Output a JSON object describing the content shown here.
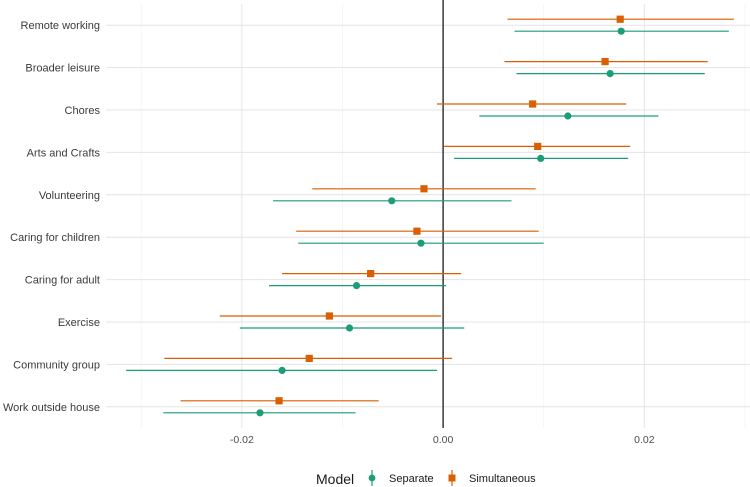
{
  "chart_data": {
    "type": "forest",
    "title": "",
    "xlabel": "",
    "ylabel": "",
    "xlim": [
      -0.0335,
      0.0305
    ],
    "x_ticks": [
      -0.02,
      0.0,
      0.02
    ],
    "x_tick_labels": [
      "-0.02",
      "0.00",
      "0.02"
    ],
    "reference_line": 0,
    "grid": true,
    "categories": [
      "Remote working",
      "Broader leisure",
      "Chores",
      "Arts and Crafts",
      "Volunteering",
      "Caring for children",
      "Caring for adult",
      "Exercise",
      "Community group",
      "Work outside house"
    ],
    "series": [
      {
        "name": "Separate",
        "color": "#1b9e77",
        "marker": "circle",
        "estimates": [
          0.0177,
          0.0166,
          0.0124,
          0.0097,
          -0.0051,
          -0.0022,
          -0.0086,
          -0.0093,
          -0.016,
          -0.0182
        ],
        "lower": [
          0.0071,
          0.0073,
          0.0036,
          0.0011,
          -0.0169,
          -0.0144,
          -0.0173,
          -0.0202,
          -0.0315,
          -0.0278
        ],
        "upper": [
          0.0284,
          0.026,
          0.0214,
          0.0184,
          0.0068,
          0.01,
          0.0003,
          0.0021,
          -0.0006,
          -0.0087
        ]
      },
      {
        "name": "Simultaneous",
        "color": "#d95f02",
        "marker": "square",
        "estimates": [
          0.0176,
          0.0161,
          0.0089,
          0.0094,
          -0.0019,
          -0.0026,
          -0.0072,
          -0.0113,
          -0.0133,
          -0.0163
        ],
        "lower": [
          0.0064,
          0.0061,
          -0.0006,
          0.0001,
          -0.013,
          -0.0146,
          -0.016,
          -0.0222,
          -0.0277,
          -0.0261
        ],
        "upper": [
          0.0289,
          0.0263,
          0.0182,
          0.0186,
          0.0092,
          0.0095,
          0.0018,
          -0.0002,
          0.0009,
          -0.0064
        ]
      }
    ],
    "legend": {
      "title": "Model",
      "position": "bottom",
      "entries": [
        "Separate",
        "Simultaneous"
      ]
    }
  }
}
